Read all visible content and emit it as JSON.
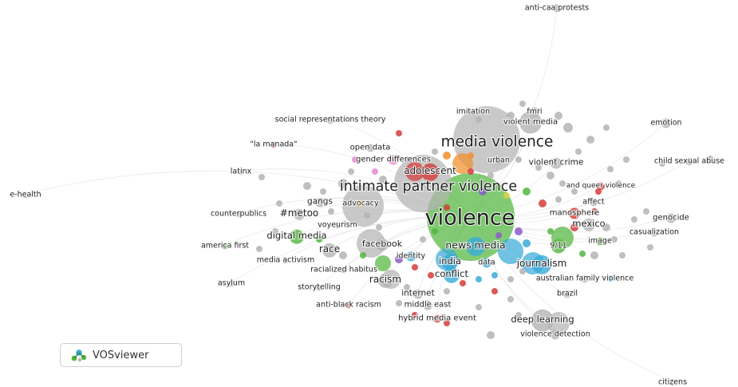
{
  "app": {
    "name": "VOSviewer",
    "logo_icon": "vosviewer-logo-icon"
  },
  "colors": {
    "green": "#52b73f",
    "grey": "#b4b4b4",
    "red": "#d43c3c",
    "blue": "#3aaad8",
    "purple": "#8a5cc9",
    "orange": "#f0902a",
    "yellow": "#e6d04a",
    "pink": "#e88ad4",
    "edge": "#d9d9d9"
  },
  "nodes": [
    {
      "label": "anti-caa protests",
      "color": "grey"
    },
    {
      "label": "imitation",
      "color": "grey"
    },
    {
      "label": "fmri",
      "color": "grey"
    },
    {
      "label": "social representations theory",
      "color": "grey"
    },
    {
      "label": "violent media",
      "color": "grey"
    },
    {
      "label": "emotion",
      "color": "grey"
    },
    {
      "label": "media violence",
      "color": "grey"
    },
    {
      "label": "\"la manada\"",
      "color": "red"
    },
    {
      "label": "open data",
      "color": "grey"
    },
    {
      "label": "gender differences",
      "color": "pink"
    },
    {
      "label": "urban",
      "color": "grey"
    },
    {
      "label": "violent crime",
      "color": "grey"
    },
    {
      "label": "child sexual abuse",
      "color": "grey"
    },
    {
      "label": "latinx",
      "color": "grey"
    },
    {
      "label": "adolescent",
      "color": "red"
    },
    {
      "label": "intimate partner violence",
      "color": "grey"
    },
    {
      "label": "and queer violence",
      "color": "red"
    },
    {
      "label": "e-health",
      "color": "grey"
    },
    {
      "label": "gangs",
      "color": "grey"
    },
    {
      "label": "advocacy",
      "color": "yellow"
    },
    {
      "label": "affect",
      "color": "grey"
    },
    {
      "label": "counterpublics",
      "color": "grey"
    },
    {
      "label": "#metoo",
      "color": "grey"
    },
    {
      "label": "violence",
      "color": "green"
    },
    {
      "label": "manosphere",
      "color": "red"
    },
    {
      "label": "genocide",
      "color": "grey"
    },
    {
      "label": "voyeurism",
      "color": "grey"
    },
    {
      "label": "mexico",
      "color": "grey"
    },
    {
      "label": "casualization",
      "color": "grey"
    },
    {
      "label": "digital media",
      "color": "green"
    },
    {
      "label": "facebook",
      "color": "grey"
    },
    {
      "label": "news media",
      "color": "blue"
    },
    {
      "label": "9/11",
      "color": "green"
    },
    {
      "label": "image",
      "color": "green"
    },
    {
      "label": "america first",
      "color": "green"
    },
    {
      "label": "race",
      "color": "grey"
    },
    {
      "label": "identity",
      "color": "blue"
    },
    {
      "label": "media activism",
      "color": "grey"
    },
    {
      "label": "india",
      "color": "blue"
    },
    {
      "label": "data",
      "color": "blue"
    },
    {
      "label": "journalism",
      "color": "blue"
    },
    {
      "label": "racialized habitus",
      "color": "grey"
    },
    {
      "label": "conflict",
      "color": "blue"
    },
    {
      "label": "asylum",
      "color": "grey"
    },
    {
      "label": "racism",
      "color": "grey"
    },
    {
      "label": "australian family violence",
      "color": "grey"
    },
    {
      "label": "storytelling",
      "color": "grey"
    },
    {
      "label": "internet",
      "color": "grey"
    },
    {
      "label": "brazil",
      "color": "grey"
    },
    {
      "label": "anti-black racism",
      "color": "red"
    },
    {
      "label": "middle east",
      "color": "grey"
    },
    {
      "label": "hybrid media event",
      "color": "red"
    },
    {
      "label": "deep learning",
      "color": "grey"
    },
    {
      "label": "violence detection",
      "color": "grey"
    },
    {
      "label": "citizens",
      "color": "grey"
    }
  ]
}
